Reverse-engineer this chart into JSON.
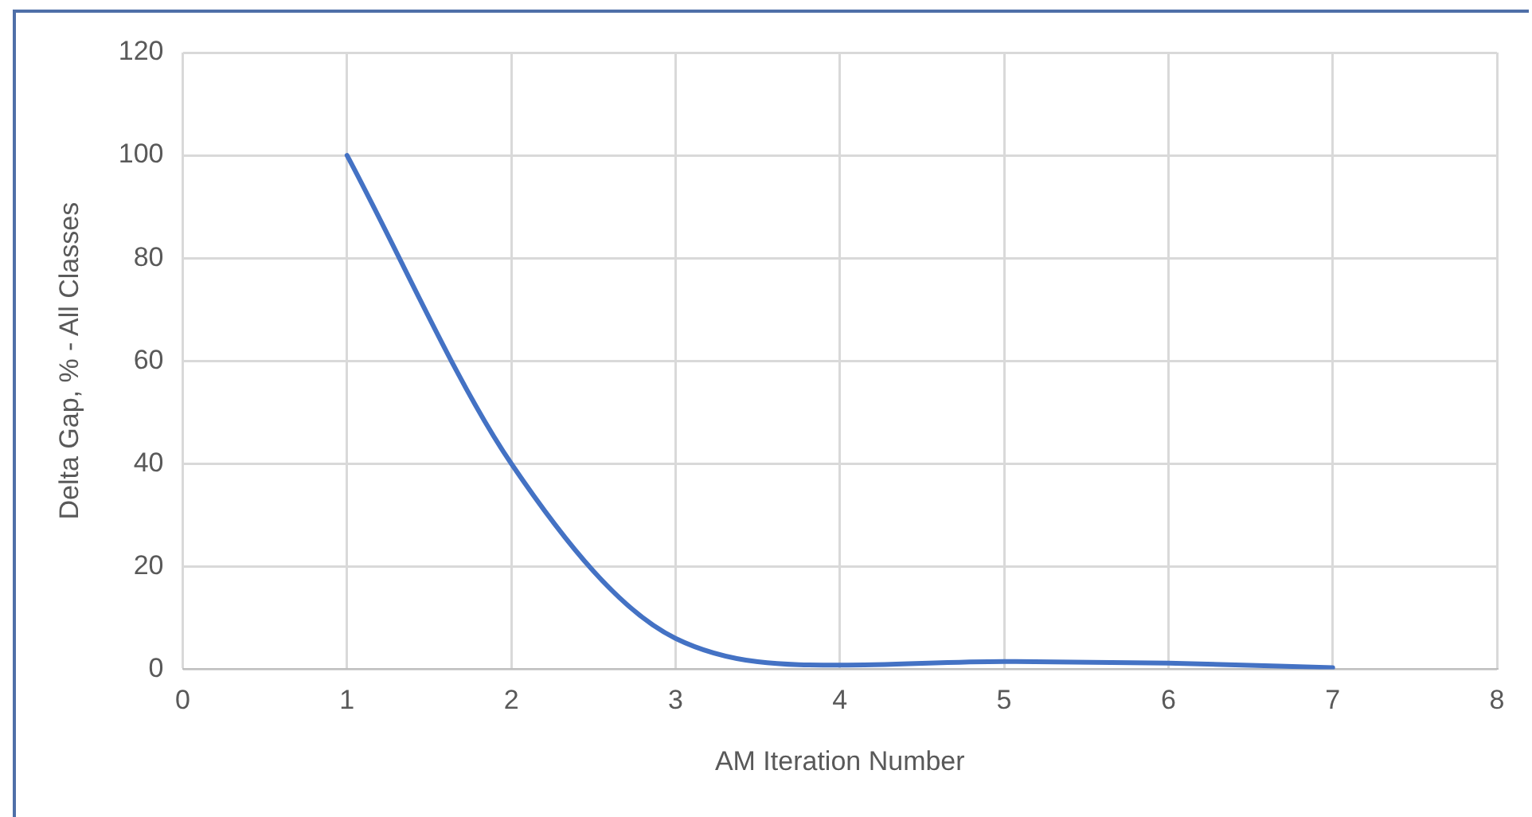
{
  "chart_data": {
    "type": "line",
    "xlabel": "AM Iteration Number",
    "ylabel": "Delta Gap, % - All Classes",
    "x": [
      1,
      2,
      3,
      4,
      5,
      6,
      7
    ],
    "series": [
      {
        "color": "#4472c4",
        "values": [
          100,
          40,
          6,
          0.8,
          1.5,
          1.2,
          0.3
        ]
      }
    ],
    "xlim": [
      0,
      8
    ],
    "xticks": [
      0,
      1,
      2,
      3,
      4,
      5,
      6,
      7,
      8
    ],
    "ylim": [
      0,
      120
    ],
    "yticks": [
      0,
      20,
      40,
      60,
      80,
      100,
      120
    ],
    "grid": true,
    "legend": false,
    "marker": "none",
    "line_style": "solid"
  }
}
